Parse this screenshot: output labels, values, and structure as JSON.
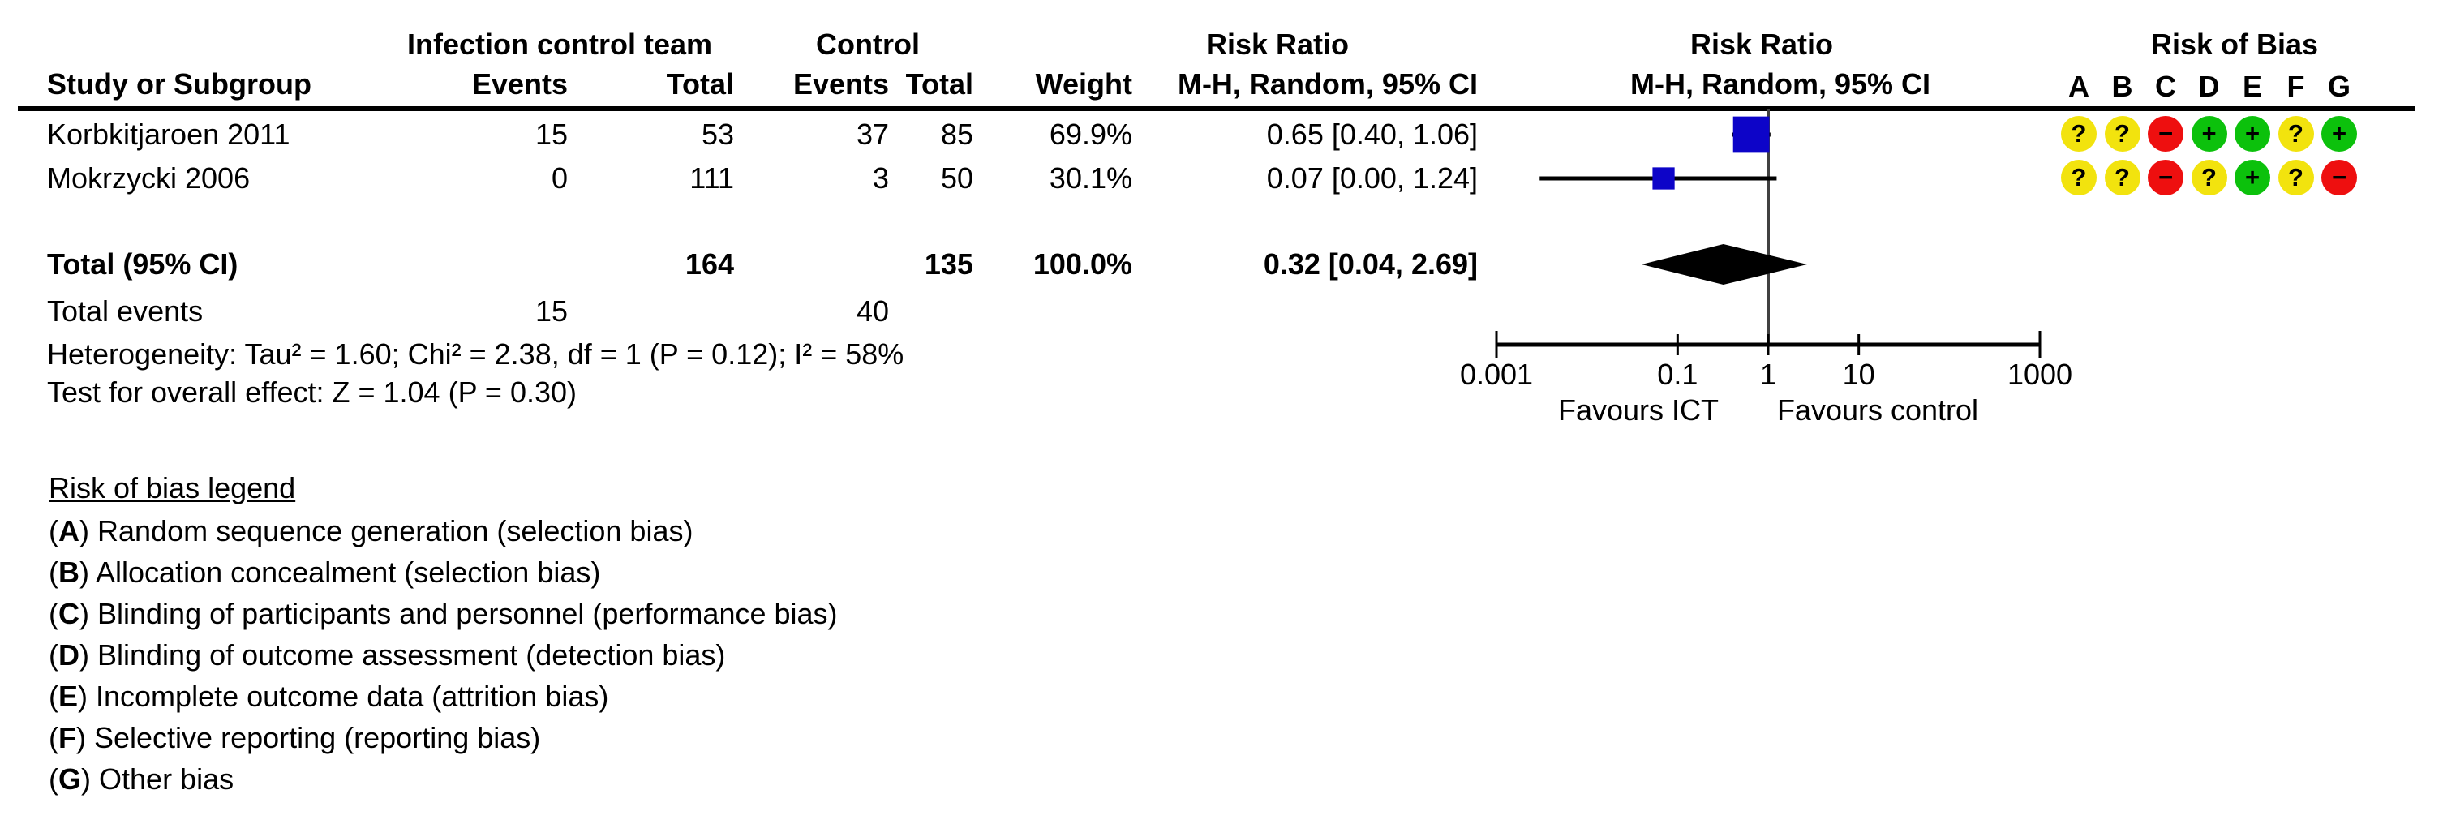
{
  "table": {
    "group_headers": {
      "ict": "Infection control team",
      "control": "Control",
      "rr_text_col": "Risk Ratio",
      "rr_plot_col": "Risk Ratio",
      "risk_of_bias": "Risk of Bias"
    },
    "col_headers": {
      "study": "Study or Subgroup",
      "events1": "Events",
      "total1": "Total",
      "events2": "Events",
      "total2": "Total",
      "weight": "Weight",
      "mh_text": "M-H, Random, 95% CI",
      "mh_plot": "M-H, Random, 95% CI"
    },
    "studies": [
      {
        "name": "Korbkitjaroen 2011",
        "events1": "15",
        "total1": "53",
        "events2": "37",
        "total2": "85",
        "weight": "69.9%",
        "rr_ci": "0.65 [0.40, 1.06]",
        "bias": [
          "?",
          "?",
          "-",
          "+",
          "+",
          "?",
          "+"
        ]
      },
      {
        "name": "Mokrzycki 2006",
        "events1": "0",
        "total1": "111",
        "events2": "3",
        "total2": "50",
        "weight": "30.1%",
        "rr_ci": "0.07 [0.00, 1.24]",
        "bias": [
          "?",
          "?",
          "-",
          "?",
          "+",
          "?",
          "-"
        ]
      }
    ],
    "total": {
      "label": "Total (95% CI)",
      "total1": "164",
      "total2": "135",
      "weight": "100.0%",
      "rr_ci": "0.32 [0.04, 2.69]"
    },
    "total_events": {
      "label": "Total events",
      "events1": "15",
      "events2": "40"
    },
    "heterogeneity": "Heterogeneity: Tau² = 1.60; Chi² = 2.38, df = 1 (P = 0.12); I² = 58%",
    "overall_effect": "Test for overall effect: Z = 1.04 (P = 0.30)"
  },
  "bias_letters": [
    "A",
    "B",
    "C",
    "D",
    "E",
    "F",
    "G"
  ],
  "legend": {
    "title": "Risk of bias legend",
    "punct": {
      "open": "(",
      "close": ") "
    },
    "items": [
      {
        "letter": "A",
        "text": "Random sequence generation (selection bias)"
      },
      {
        "letter": "B",
        "text": "Allocation concealment (selection bias)"
      },
      {
        "letter": "C",
        "text": "Blinding of participants and personnel (performance bias)"
      },
      {
        "letter": "D",
        "text": "Blinding of outcome assessment (detection bias)"
      },
      {
        "letter": "E",
        "text": "Incomplete outcome data (attrition bias)"
      },
      {
        "letter": "F",
        "text": "Selective reporting (reporting bias)"
      },
      {
        "letter": "G",
        "text": "Other bias"
      }
    ]
  },
  "colors": {
    "square_blue": "#0d04c8",
    "diamond_black": "#000000",
    "null_line_gray": "#404040",
    "bias_unclear_yellow": "#f2e30e",
    "bias_low_green": "#0cc10c",
    "bias_high_red": "#ee0f0f"
  },
  "chart_data": {
    "type": "forest",
    "effect_measure": "Risk Ratio",
    "model": "M-H, Random, 95% CI",
    "scale": "log",
    "axis": {
      "min": 0.001,
      "max": 1000,
      "ticks": [
        0.001,
        0.1,
        1,
        10,
        1000
      ],
      "tick_labels": [
        "0.001",
        "0.1",
        "1",
        "10",
        "1000"
      ]
    },
    "clip_min": 0.003,
    "favours_left": "Favours ICT",
    "favours_right": "Favours control",
    "points": [
      {
        "study": "Korbkitjaroen 2011",
        "estimate": 0.65,
        "ci_low": 0.4,
        "ci_high": 1.06,
        "weight_pct": 69.9
      },
      {
        "study": "Mokrzycki 2006",
        "estimate": 0.07,
        "ci_low": 0.0,
        "ci_high": 1.24,
        "weight_pct": 30.1
      }
    ],
    "total": {
      "estimate": 0.32,
      "ci_low": 0.04,
      "ci_high": 2.69,
      "weight_pct": 100.0
    }
  }
}
